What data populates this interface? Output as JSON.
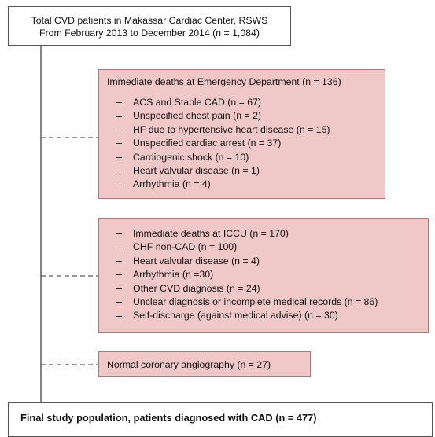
{
  "top": {
    "lines": [
      "Total CVD patients in Makassar Cardiac Center, RSWS",
      "From February 2013 to December 2014  (n = 1,084)"
    ]
  },
  "exclusions": [
    {
      "title": "Immediate deaths at Emergency Department (n = 136)",
      "items": [
        "ACS and Stable CAD (n = 67)",
        "Unspecified chest pain (n = 2)",
        "HF due to hypertensive heart disease (n = 15)",
        "Unspecified cardiac arrest (n = 37)",
        "Cardiogenic shock (n = 10)",
        "Heart valvular disease (n = 1)",
        "Arrhythmia (n = 4)"
      ]
    },
    {
      "items": [
        "Immediate deaths at ICCU  (n = 170)",
        "CHF non-CAD (n = 100)",
        "Heart valvular disease (n = 4)",
        "Arrhythmia (n =30)",
        "Other CVD diagnosis (n = 24)",
        "Unclear diagnosis or incomplete medical records (n = 86)",
        "Self-discharge (against medical advise) (n = 30)"
      ]
    },
    {
      "title": "Normal coronary angiography (n = 27)"
    }
  ],
  "final": {
    "text": "Final study population, patients diagnosed with CAD (n = 477)"
  }
}
